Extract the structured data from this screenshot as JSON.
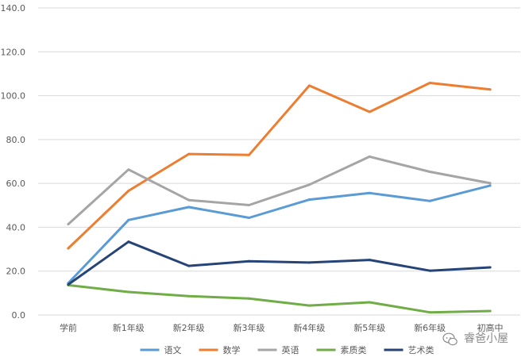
{
  "chart_data": {
    "type": "line",
    "title": "",
    "xlabel": "",
    "ylabel": "",
    "categories": [
      "学前",
      "新1年级",
      "新2年级",
      "新3年级",
      "新4年级",
      "新5年级",
      "新6年级",
      "初高中"
    ],
    "ylim": [
      0,
      140
    ],
    "yticks": [
      "0.0",
      "20.0",
      "40.0",
      "60.0",
      "80.0",
      "100.0",
      "120.0",
      "140.0"
    ],
    "grid": true,
    "legend_position": "bottom",
    "series": [
      {
        "name": "语文",
        "color": "#5B9BD5",
        "values": [
          14.5,
          43.3,
          49.2,
          44.3,
          52.6,
          55.6,
          52.0,
          59.0
        ]
      },
      {
        "name": "数学",
        "color": "#ED7D31",
        "values": [
          30.4,
          56.6,
          73.4,
          73.0,
          104.6,
          92.6,
          105.8,
          102.8
        ]
      },
      {
        "name": "英语",
        "color": "#A5A5A5",
        "values": [
          41.4,
          66.3,
          52.4,
          50.1,
          59.4,
          72.2,
          65.3,
          60.1
        ]
      },
      {
        "name": "素质类",
        "color": "#70AD47",
        "values": [
          13.6,
          10.5,
          8.6,
          7.5,
          4.3,
          5.8,
          1.2,
          1.8
        ]
      },
      {
        "name": "艺术类",
        "color": "#264478",
        "values": [
          13.9,
          33.4,
          22.4,
          24.5,
          23.9,
          25.1,
          20.2,
          21.7
        ]
      }
    ]
  },
  "watermark": {
    "text": "睿爸小屋",
    "icon": "chat-bubble-icon"
  }
}
